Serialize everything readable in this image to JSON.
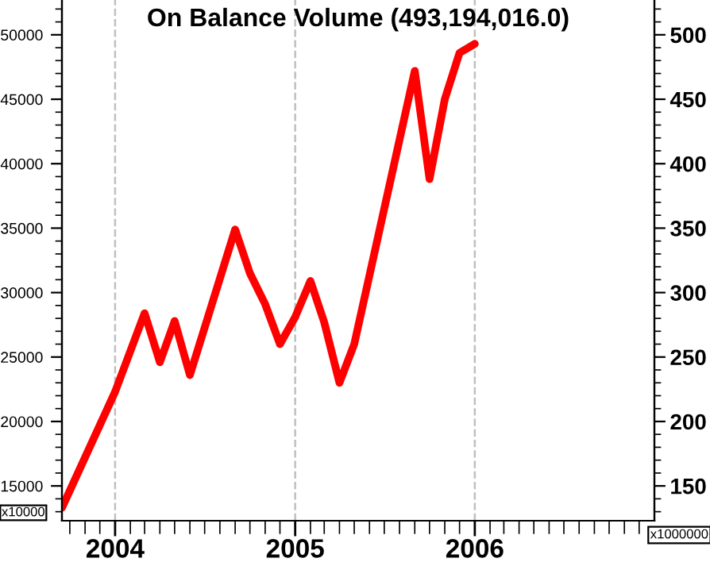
{
  "chart_data": {
    "type": "line",
    "title": "On Balance Volume (493,194,016.0)",
    "series": [
      {
        "color": "#ff0000",
        "axis": "y",
        "x": [
          "2003-09-15",
          "2004-01-01",
          "2004-03-01",
          "2004-04-01",
          "2004-05-01",
          "2004-06-01",
          "2004-09-01",
          "2004-10-01",
          "2004-11-01",
          "2004-12-01",
          "2005-01-01",
          "2005-02-01",
          "2005-03-01",
          "2005-04-01",
          "2005-05-01",
          "2005-09-01",
          "2005-10-01",
          "2005-11-01",
          "2005-12-01",
          "2006-01-01"
        ],
        "values": [
          13300,
          22300,
          28400,
          24600,
          27800,
          23600,
          34900,
          31500,
          29100,
          26000,
          28100,
          30900,
          27700,
          23000,
          26000,
          47200,
          38800,
          45000,
          48600,
          49300
        ]
      }
    ],
    "xlim": [
      "2003-09-15",
      "2007-01-01"
    ],
    "xticks": [
      {
        "value": "2003-10-01",
        "label": null
      },
      {
        "value": "2003-11-01",
        "label": null
      },
      {
        "value": "2003-12-01",
        "label": null
      },
      {
        "value": "2004-01-01",
        "label": "2004"
      },
      {
        "value": "2004-02-01",
        "label": null
      },
      {
        "value": "2004-03-01",
        "label": null
      },
      {
        "value": "2004-04-01",
        "label": null
      },
      {
        "value": "2004-05-01",
        "label": null
      },
      {
        "value": "2004-06-01",
        "label": null
      },
      {
        "value": "2004-07-01",
        "label": null
      },
      {
        "value": "2004-08-01",
        "label": null
      },
      {
        "value": "2004-09-01",
        "label": null
      },
      {
        "value": "2004-10-01",
        "label": null
      },
      {
        "value": "2004-11-01",
        "label": null
      },
      {
        "value": "2004-12-01",
        "label": null
      },
      {
        "value": "2005-01-01",
        "label": "2005"
      },
      {
        "value": "2005-02-01",
        "label": null
      },
      {
        "value": "2005-03-01",
        "label": null
      },
      {
        "value": "2005-04-01",
        "label": null
      },
      {
        "value": "2005-05-01",
        "label": null
      },
      {
        "value": "2005-06-01",
        "label": null
      },
      {
        "value": "2005-07-01",
        "label": null
      },
      {
        "value": "2005-08-01",
        "label": null
      },
      {
        "value": "2005-09-01",
        "label": null
      },
      {
        "value": "2005-10-01",
        "label": null
      },
      {
        "value": "2005-11-01",
        "label": null
      },
      {
        "value": "2005-12-01",
        "label": null
      },
      {
        "value": "2006-01-01",
        "label": "2006"
      },
      {
        "value": "2006-02-01",
        "label": null
      },
      {
        "value": "2006-03-01",
        "label": null
      },
      {
        "value": "2006-04-01",
        "label": null
      },
      {
        "value": "2006-05-01",
        "label": null
      },
      {
        "value": "2006-06-01",
        "label": null
      },
      {
        "value": "2006-07-01",
        "label": null
      },
      {
        "value": "2006-08-01",
        "label": null
      },
      {
        "value": "2006-09-01",
        "label": null
      },
      {
        "value": "2006-10-01",
        "label": null
      },
      {
        "value": "2006-11-01",
        "label": null
      },
      {
        "value": "2006-12-01",
        "label": null
      }
    ],
    "ylim": [
      12300,
      52700
    ],
    "yticks": [
      15000,
      20000,
      25000,
      30000,
      35000,
      40000,
      45000,
      50000
    ],
    "y2lim": [
      123,
      527
    ],
    "y2ticks": [
      150,
      200,
      250,
      300,
      350,
      400,
      450,
      500
    ],
    "annotations": [
      "x10000",
      "x1000000"
    ],
    "grid": "x",
    "line_style": "solid",
    "marker": "none"
  }
}
